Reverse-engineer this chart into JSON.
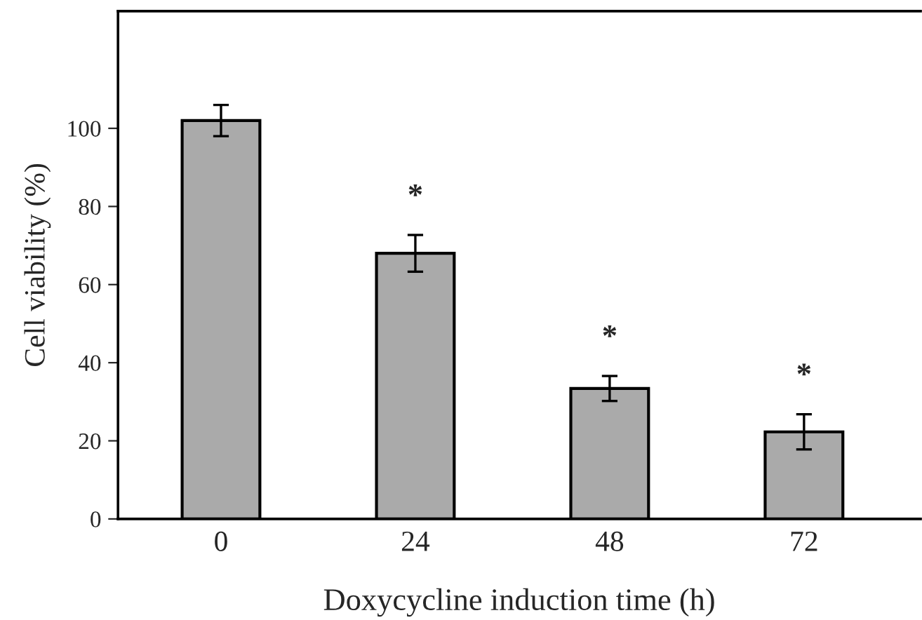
{
  "chart_data": {
    "type": "bar",
    "xlabel": "Doxycycline induction time (h)",
    "ylabel": "Cell viability (%)",
    "categories": [
      "0",
      "24",
      "48",
      "72"
    ],
    "values": [
      102,
      68,
      33.4,
      22.3
    ],
    "errors": [
      4,
      4.7,
      3.2,
      4.5
    ],
    "color": "#aaaaaa",
    "ylim": [
      0,
      130
    ],
    "yticks": [
      0,
      20,
      40,
      60,
      80,
      100
    ],
    "annotations": [
      "*",
      "*",
      "*"
    ],
    "grid": false
  }
}
